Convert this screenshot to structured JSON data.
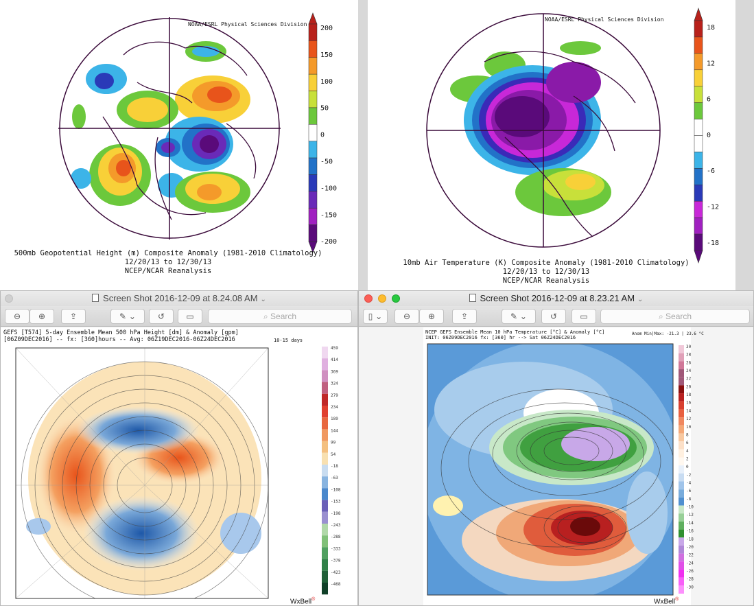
{
  "top_left": {
    "credit": "NOAA/ESRL Physical Sciences Division",
    "title_line1": "500mb Geopotential Height (m) Composite Anomaly (1981-2010 Climatology)",
    "title_line2": "12/20/13  to 12/30/13",
    "title_line3": "NCEP/NCAR Reanalysis",
    "colorbar": {
      "labels": [
        "200",
        "150",
        "100",
        "50",
        "0",
        "-50",
        "-100",
        "-150",
        "-200"
      ],
      "colors": [
        "#b8211b",
        "#e8541b",
        "#f49a2a",
        "#f8d038",
        "#c8e03a",
        "#6cc83c",
        "#ffffff",
        "#3cb4e8",
        "#2272c8",
        "#2a3ab8",
        "#6a2ab8",
        "#a020c0",
        "#5a0a7a"
      ]
    }
  },
  "top_right": {
    "credit": "NOAA/ESRL Physical Sciences Division",
    "title_line1": "10mb Air Temperature (K) Composite Anomaly (1981-2010 Climatology)",
    "title_line2": "12/20/13  to 12/30/13",
    "title_line3": "NCEP/NCAR Reanalysis",
    "colorbar": {
      "labels": [
        "18",
        "12",
        "6",
        "0",
        "-6",
        "-12",
        "-18"
      ]
    }
  },
  "window_left": {
    "title": "Screen Shot 2016-12-09 at 8.24.08 AM",
    "search_placeholder": "Search",
    "header_line1": "GEFS [T574] 5-day Ensemble Mean 500 hPa Height [dm] & Anomaly [gpm]",
    "header_line2": "[06Z09DEC2016] -- fx: [360]hours -- Avg: 06Z19DEC2016-06Z24DEC2016",
    "header_right": "10-15 days",
    "colorbar_labels": [
      "459",
      "414",
      "369",
      "324",
      "279",
      "234",
      "189",
      "144",
      "99",
      "54",
      "-18",
      "-63",
      "-108",
      "-153",
      "-198",
      "-243",
      "-288",
      "-333",
      "-378",
      "-423",
      "-468"
    ],
    "brand": "WxBell"
  },
  "window_right": {
    "title": "Screen Shot 2016-12-09 at 8.23.21 AM",
    "search_placeholder": "Search",
    "header_line1": "NCEP GEFS Ensemble Mean 10 hPa Temperature [°C] & Anomaly [°C]",
    "header_line2": "INIT: 06Z09DEC2016 fx: [360] hr --> Sat 06Z24DEC2016",
    "header_right": "Anom Min|Max: -21.3 | 23.6 °C",
    "colorbar_labels": [
      "30",
      "28",
      "26",
      "24",
      "22",
      "20",
      "18",
      "16",
      "14",
      "12",
      "10",
      "8",
      "6",
      "4",
      "2",
      "0",
      "-2",
      "-4",
      "-6",
      "-8",
      "-10",
      "-12",
      "-14",
      "-16",
      "-18",
      "-20",
      "-22",
      "-24",
      "-26",
      "-28",
      "-30"
    ],
    "brand": "WxBell"
  }
}
